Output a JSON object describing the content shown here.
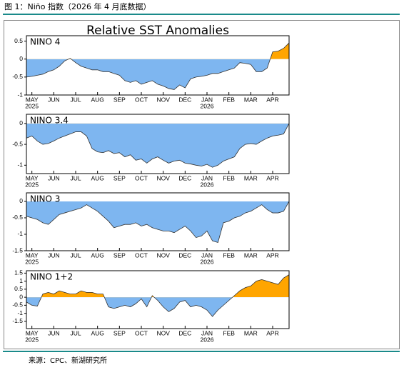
{
  "header": "图 1：Niño 指数（2026 年 4 月底数据）",
  "title": "Relative SST Anomalies",
  "source": "来源：CPC、新湖研究所",
  "chart_data": [
    {
      "type": "area",
      "label": "NINO 4",
      "positive_color": "#ffa500",
      "negative_color": "#7eb6f0",
      "xlim": [
        0,
        12
      ],
      "xticks": [
        {
          "value": 0.25,
          "label": "MAY"
        },
        {
          "value": 1.25,
          "label": "JUN"
        },
        {
          "value": 2.25,
          "label": "JUL"
        },
        {
          "value": 3.25,
          "label": "AUG"
        },
        {
          "value": 4.25,
          "label": "SEP"
        },
        {
          "value": 5.25,
          "label": "OCT"
        },
        {
          "value": 6.25,
          "label": "NOV"
        },
        {
          "value": 7.25,
          "label": "DEC"
        },
        {
          "value": 8.25,
          "label": "JAN"
        },
        {
          "value": 9.25,
          "label": "FEB"
        },
        {
          "value": 10.25,
          "label": "MAR"
        },
        {
          "value": 11.25,
          "label": "APR"
        }
      ],
      "year_labels": [
        {
          "value": 0.25,
          "label": "2025"
        },
        {
          "value": 8.25,
          "label": "2026"
        }
      ],
      "ylim": [
        -1,
        0.65
      ],
      "yticks": [
        -1,
        -0.5,
        0,
        0.5
      ],
      "x": [
        0,
        0.25,
        0.5,
        0.75,
        1,
        1.25,
        1.5,
        1.75,
        2,
        2.25,
        2.5,
        2.75,
        3,
        3.25,
        3.5,
        3.75,
        4,
        4.25,
        4.5,
        4.75,
        5,
        5.25,
        5.5,
        5.75,
        6,
        6.25,
        6.5,
        6.75,
        7,
        7.25,
        7.5,
        7.75,
        8,
        8.25,
        8.5,
        8.75,
        9,
        9.25,
        9.5,
        9.75,
        10,
        10.25,
        10.5,
        10.75,
        11,
        11.25,
        11.5,
        11.75,
        12
      ],
      "values": [
        -0.5,
        -0.48,
        -0.45,
        -0.42,
        -0.35,
        -0.3,
        -0.2,
        -0.05,
        0.02,
        -0.1,
        -0.2,
        -0.25,
        -0.3,
        -0.3,
        -0.35,
        -0.35,
        -0.4,
        -0.45,
        -0.6,
        -0.65,
        -0.6,
        -0.7,
        -0.65,
        -0.6,
        -0.7,
        -0.75,
        -0.82,
        -0.85,
        -0.72,
        -0.8,
        -0.55,
        -0.5,
        -0.48,
        -0.45,
        -0.4,
        -0.4,
        -0.35,
        -0.3,
        -0.25,
        -0.1,
        -0.12,
        -0.15,
        -0.35,
        -0.35,
        -0.25,
        0.2,
        0.22,
        0.3,
        0.45
      ]
    },
    {
      "type": "area",
      "label": "NINO 3.4",
      "positive_color": "#ffa500",
      "negative_color": "#7eb6f0",
      "xlim": [
        0,
        12
      ],
      "xticks": [
        {
          "value": 0.25,
          "label": "MAY"
        },
        {
          "value": 1.25,
          "label": "JUN"
        },
        {
          "value": 2.25,
          "label": "JUL"
        },
        {
          "value": 3.25,
          "label": "AUG"
        },
        {
          "value": 4.25,
          "label": "SEP"
        },
        {
          "value": 5.25,
          "label": "OCT"
        },
        {
          "value": 6.25,
          "label": "NOV"
        },
        {
          "value": 7.25,
          "label": "DEC"
        },
        {
          "value": 8.25,
          "label": "JAN"
        },
        {
          "value": 9.25,
          "label": "FEB"
        },
        {
          "value": 10.25,
          "label": "MAR"
        },
        {
          "value": 11.25,
          "label": "APR"
        }
      ],
      "year_labels": [
        {
          "value": 0.25,
          "label": "2025"
        },
        {
          "value": 8.25,
          "label": "2026"
        }
      ],
      "ylim": [
        -1.2,
        0.22
      ],
      "yticks": [
        -1,
        -0.5,
        0
      ],
      "x": [
        0,
        0.25,
        0.5,
        0.75,
        1,
        1.25,
        1.5,
        1.75,
        2,
        2.25,
        2.5,
        2.75,
        3,
        3.25,
        3.5,
        3.75,
        4,
        4.25,
        4.5,
        4.75,
        5,
        5.25,
        5.5,
        5.75,
        6,
        6.25,
        6.5,
        6.75,
        7,
        7.25,
        7.5,
        7.75,
        8,
        8.25,
        8.5,
        8.75,
        9,
        9.25,
        9.5,
        9.75,
        10,
        10.25,
        10.5,
        10.75,
        11,
        11.25,
        11.5,
        11.75,
        12
      ],
      "values": [
        -0.35,
        -0.3,
        -0.42,
        -0.5,
        -0.48,
        -0.42,
        -0.35,
        -0.3,
        -0.25,
        -0.2,
        -0.2,
        -0.3,
        -0.6,
        -0.68,
        -0.7,
        -0.65,
        -0.72,
        -0.7,
        -0.8,
        -0.75,
        -0.88,
        -0.85,
        -0.95,
        -0.85,
        -0.8,
        -0.88,
        -0.95,
        -0.9,
        -0.88,
        -0.95,
        -0.97,
        -1.0,
        -1.02,
        -0.98,
        -1.05,
        -1.0,
        -0.9,
        -0.85,
        -0.8,
        -0.6,
        -0.5,
        -0.48,
        -0.5,
        -0.42,
        -0.35,
        -0.3,
        -0.28,
        -0.25,
        0.0
      ]
    },
    {
      "type": "area",
      "label": "NINO 3",
      "positive_color": "#ffa500",
      "negative_color": "#7eb6f0",
      "xlim": [
        0,
        12
      ],
      "xticks": [
        {
          "value": 0.25,
          "label": "MAY"
        },
        {
          "value": 1.25,
          "label": "JUN"
        },
        {
          "value": 2.25,
          "label": "JUL"
        },
        {
          "value": 3.25,
          "label": "AUG"
        },
        {
          "value": 4.25,
          "label": "SEP"
        },
        {
          "value": 5.25,
          "label": "OCT"
        },
        {
          "value": 6.25,
          "label": "NOV"
        },
        {
          "value": 7.25,
          "label": "DEC"
        },
        {
          "value": 8.25,
          "label": "JAN"
        },
        {
          "value": 9.25,
          "label": "FEB"
        },
        {
          "value": 10.25,
          "label": "MAR"
        },
        {
          "value": 11.25,
          "label": "APR"
        }
      ],
      "year_labels": [
        {
          "value": 0.25,
          "label": "2025"
        },
        {
          "value": 8.25,
          "label": "2026"
        }
      ],
      "ylim": [
        -1.5,
        0.26
      ],
      "yticks": [
        -1.5,
        -1,
        -0.5,
        0
      ],
      "x": [
        0,
        0.25,
        0.5,
        0.75,
        1,
        1.25,
        1.5,
        1.75,
        2,
        2.25,
        2.5,
        2.75,
        3,
        3.25,
        3.5,
        3.75,
        4,
        4.25,
        4.5,
        4.75,
        5,
        5.25,
        5.5,
        5.75,
        6,
        6.25,
        6.5,
        6.75,
        7,
        7.25,
        7.5,
        7.75,
        8,
        8.25,
        8.5,
        8.75,
        9,
        9.25,
        9.5,
        9.75,
        10,
        10.25,
        10.5,
        10.75,
        11,
        11.25,
        11.5,
        11.75,
        12
      ],
      "values": [
        -0.45,
        -0.5,
        -0.55,
        -0.65,
        -0.7,
        -0.55,
        -0.4,
        -0.35,
        -0.3,
        -0.25,
        -0.2,
        -0.1,
        -0.2,
        -0.3,
        -0.45,
        -0.6,
        -0.8,
        -0.75,
        -0.7,
        -0.7,
        -0.65,
        -0.75,
        -0.7,
        -0.8,
        -0.85,
        -0.9,
        -0.9,
        -0.95,
        -0.85,
        -0.75,
        -0.9,
        -1.1,
        -1.05,
        -0.9,
        -1.2,
        -1.25,
        -0.65,
        -0.6,
        -0.5,
        -0.45,
        -0.35,
        -0.3,
        -0.2,
        -0.1,
        -0.25,
        -0.35,
        -0.35,
        -0.3,
        0.0
      ]
    },
    {
      "type": "area",
      "label": "NINO 1+2",
      "positive_color": "#ffa500",
      "negative_color": "#7eb6f0",
      "xlim": [
        0,
        12
      ],
      "xticks": [
        {
          "value": 0.25,
          "label": "MAY"
        },
        {
          "value": 1.25,
          "label": "JUN"
        },
        {
          "value": 2.25,
          "label": "JUL"
        },
        {
          "value": 3.25,
          "label": "AUG"
        },
        {
          "value": 4.25,
          "label": "SEP"
        },
        {
          "value": 5.25,
          "label": "OCT"
        },
        {
          "value": 6.25,
          "label": "NOV"
        },
        {
          "value": 7.25,
          "label": "DEC"
        },
        {
          "value": 8.25,
          "label": "JAN"
        },
        {
          "value": 9.25,
          "label": "FEB"
        },
        {
          "value": 10.25,
          "label": "MAR"
        },
        {
          "value": 11.25,
          "label": "APR"
        }
      ],
      "year_labels": [
        {
          "value": 0.25,
          "label": "2025"
        },
        {
          "value": 8.25,
          "label": "2026"
        }
      ],
      "ylim": [
        -1.95,
        1.65
      ],
      "yticks": [
        -1.5,
        -1,
        -0.5,
        0,
        0.5,
        1,
        1.5
      ],
      "x": [
        0,
        0.25,
        0.5,
        0.75,
        1,
        1.25,
        1.5,
        1.75,
        2,
        2.25,
        2.5,
        2.75,
        3,
        3.25,
        3.5,
        3.75,
        4,
        4.25,
        4.5,
        4.75,
        5,
        5.25,
        5.5,
        5.75,
        6,
        6.25,
        6.5,
        6.75,
        7,
        7.25,
        7.5,
        7.75,
        8,
        8.25,
        8.5,
        8.75,
        9,
        9.25,
        9.5,
        9.75,
        10,
        10.25,
        10.5,
        10.75,
        11,
        11.25,
        11.5,
        11.75,
        12
      ],
      "values": [
        -0.3,
        -0.5,
        -0.55,
        0.2,
        0.3,
        0.2,
        0.4,
        0.3,
        0.2,
        0.2,
        0.4,
        0.3,
        0.3,
        0.2,
        0.2,
        -0.6,
        -0.7,
        -0.6,
        -0.5,
        -0.6,
        -0.4,
        -0.1,
        -0.6,
        0.1,
        -0.2,
        -0.6,
        -0.9,
        -0.7,
        -0.3,
        -0.2,
        -0.6,
        -0.5,
        -0.6,
        -0.8,
        -1.2,
        -0.8,
        -0.5,
        -0.2,
        0.1,
        0.4,
        0.6,
        0.7,
        1.0,
        1.1,
        1.0,
        0.9,
        0.8,
        1.2,
        1.4
      ]
    }
  ]
}
